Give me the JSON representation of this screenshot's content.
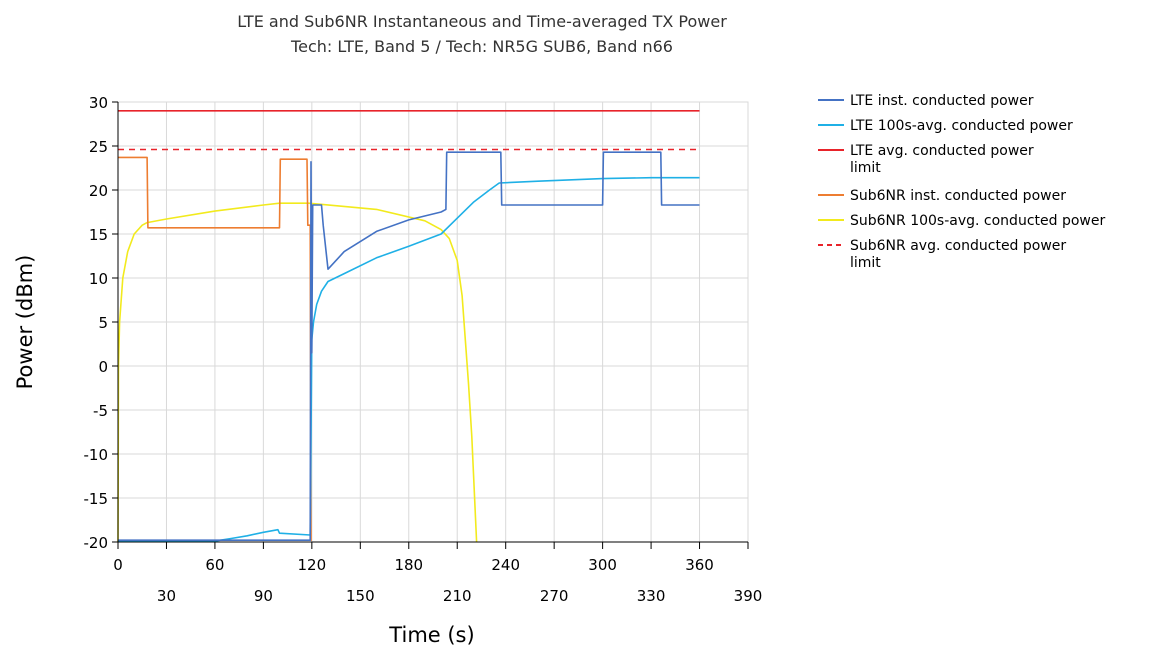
{
  "chart_data": {
    "type": "line",
    "title": "LTE and Sub6NR Instantaneous and Time-averaged TX Power",
    "subtitle": "Tech: LTE, Band 5 / Tech: NR5G SUB6, Band n66",
    "xlabel": "Time (s)",
    "ylabel": "Power (dBm)",
    "xlim": [
      0,
      390
    ],
    "ylim": [
      -20,
      30
    ],
    "x_ticks_upper": [
      "0",
      "60",
      "120",
      "180",
      "240",
      "300",
      "360"
    ],
    "x_ticks_lower": [
      "30",
      "90",
      "150",
      "210",
      "270",
      "330",
      "390"
    ],
    "y_ticks": [
      "30",
      "25",
      "20",
      "15",
      "10",
      "5",
      "0",
      "-5",
      "-10",
      "-15",
      "-20"
    ],
    "grid": true,
    "legend_position": "right",
    "series": [
      {
        "name": [
          "LTE inst. conducted power"
        ],
        "color": "#4472c4",
        "dash": false,
        "points": [
          [
            0,
            -19.8
          ],
          [
            119,
            -19.8
          ],
          [
            119.5,
            23.2
          ],
          [
            120,
            1.5
          ],
          [
            120.5,
            18.3
          ],
          [
            126,
            18.3
          ],
          [
            127,
            16
          ],
          [
            130,
            11
          ],
          [
            140,
            13
          ],
          [
            160,
            15.3
          ],
          [
            180,
            16.6
          ],
          [
            200,
            17.5
          ],
          [
            203,
            17.8
          ],
          [
            203.5,
            24.3
          ],
          [
            237,
            24.3
          ],
          [
            237.5,
            18.3
          ],
          [
            300,
            18.3
          ],
          [
            300.5,
            24.3
          ],
          [
            336,
            24.3
          ],
          [
            336.5,
            18.3
          ],
          [
            360,
            18.3
          ]
        ]
      },
      {
        "name": [
          "LTE 100s-avg. conducted power"
        ],
        "color": "#1fb0e6",
        "dash": false,
        "points": [
          [
            0,
            -19.9
          ],
          [
            60,
            -19.9
          ],
          [
            70,
            -19.6
          ],
          [
            80,
            -19.3
          ],
          [
            90,
            -18.9
          ],
          [
            99,
            -18.6
          ],
          [
            100,
            -19
          ],
          [
            119,
            -19.2
          ],
          [
            120,
            3
          ],
          [
            121,
            5
          ],
          [
            123,
            7
          ],
          [
            126,
            8.5
          ],
          [
            130,
            9.6
          ],
          [
            140,
            10.5
          ],
          [
            160,
            12.3
          ],
          [
            180,
            13.6
          ],
          [
            200,
            15
          ],
          [
            210,
            16.8
          ],
          [
            220,
            18.6
          ],
          [
            230,
            20
          ],
          [
            236,
            20.8
          ],
          [
            260,
            21
          ],
          [
            300,
            21.3
          ],
          [
            330,
            21.4
          ],
          [
            360,
            21.4
          ]
        ]
      },
      {
        "name": [
          "LTE avg. conducted power",
          "limit"
        ],
        "color": "#e8232a",
        "dash": false,
        "points": [
          [
            0,
            29
          ],
          [
            360,
            29
          ]
        ]
      },
      {
        "name": [
          "Sub6NR inst. conducted power"
        ],
        "color": "#ed7d31",
        "dash": false,
        "points": [
          [
            0,
            23.7
          ],
          [
            18,
            23.7
          ],
          [
            18.5,
            15.7
          ],
          [
            100,
            15.7
          ],
          [
            100.5,
            23.5
          ],
          [
            117,
            23.5
          ],
          [
            117.5,
            16
          ],
          [
            119,
            16
          ],
          [
            119.5,
            -19.8
          ],
          [
            120,
            -19.8
          ]
        ]
      },
      {
        "name": [
          "Sub6NR 100s-avg. conducted power"
        ],
        "color": "#f2ea1d",
        "dash": false,
        "points": [
          [
            0,
            -20
          ],
          [
            0.3,
            0
          ],
          [
            1,
            5
          ],
          [
            3,
            10
          ],
          [
            6,
            13
          ],
          [
            10,
            15
          ],
          [
            15,
            16
          ],
          [
            18,
            16.3
          ],
          [
            30,
            16.7
          ],
          [
            60,
            17.6
          ],
          [
            90,
            18.3
          ],
          [
            100,
            18.5
          ],
          [
            118,
            18.5
          ],
          [
            160,
            17.8
          ],
          [
            190,
            16.5
          ],
          [
            200,
            15.5
          ],
          [
            205,
            14.5
          ],
          [
            210,
            12
          ],
          [
            213,
            8
          ],
          [
            215,
            3
          ],
          [
            217,
            -2
          ],
          [
            219,
            -8
          ],
          [
            220,
            -12
          ],
          [
            221,
            -16
          ],
          [
            222,
            -20
          ]
        ]
      },
      {
        "name": [
          "Sub6NR avg. conducted power",
          "limit"
        ],
        "color": "#e8232a",
        "dash": true,
        "points": [
          [
            0,
            24.6
          ],
          [
            360,
            24.6
          ]
        ]
      }
    ]
  }
}
